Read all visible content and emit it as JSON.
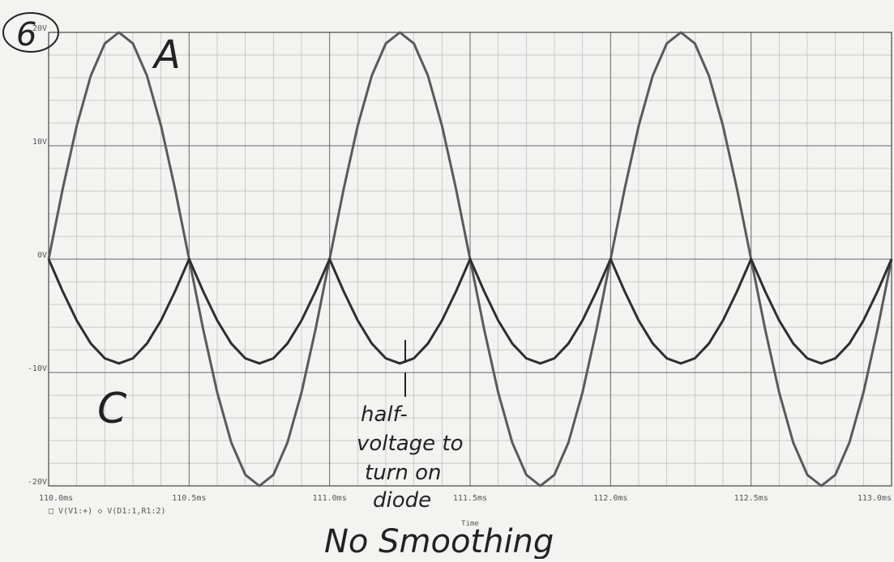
{
  "chart_data": {
    "type": "line",
    "x_label": "Time",
    "xlim": [
      110,
      113
    ],
    "ylim": [
      -20,
      20
    ],
    "xticks": [
      {
        "value": 110,
        "label": "110.0ms"
      },
      {
        "value": 110.5,
        "label": "110.5ms"
      },
      {
        "value": 111,
        "label": "111.0ms"
      },
      {
        "value": 111.5,
        "label": "111.5ms"
      },
      {
        "value": 112,
        "label": "112.0ms"
      },
      {
        "value": 112.5,
        "label": "112.5ms"
      },
      {
        "value": 113,
        "label": "113.0ms"
      }
    ],
    "yticks": [
      {
        "value": -20,
        "label": "-20V"
      },
      {
        "value": -10,
        "label": "-10V"
      },
      {
        "value": 0,
        "label": "0V"
      },
      {
        "value": 10,
        "label": "10V"
      },
      {
        "value": 20,
        "label": "20V"
      }
    ],
    "grid": true,
    "minor_grid": true,
    "x": [
      110,
      110.05,
      110.1,
      110.15,
      110.2,
      110.25,
      110.3,
      110.35,
      110.4,
      110.45,
      110.5,
      110.55,
      110.6,
      110.65,
      110.7,
      110.75,
      110.8,
      110.85,
      110.9,
      110.95,
      111,
      111.05,
      111.1,
      111.15,
      111.2,
      111.25,
      111.3,
      111.35,
      111.4,
      111.45,
      111.5,
      111.55,
      111.6,
      111.65,
      111.7,
      111.75,
      111.8,
      111.85,
      111.9,
      111.95,
      112,
      112.05,
      112.1,
      112.15,
      112.2,
      112.25,
      112.3,
      112.35,
      112.4,
      112.45,
      112.5,
      112.55,
      112.6,
      112.65,
      112.7,
      112.75,
      112.8,
      112.85,
      112.9,
      112.95,
      113
    ],
    "series": [
      {
        "name": "V(V1:+)",
        "color": "#5a5a5a",
        "values": [
          0,
          6.18,
          11.76,
          16.18,
          19.02,
          20,
          19.02,
          16.18,
          11.76,
          6.18,
          0,
          -6.18,
          -11.76,
          -16.18,
          -19.02,
          -20,
          -19.02,
          -16.18,
          -11.76,
          -6.18,
          0,
          6.18,
          11.76,
          16.18,
          19.02,
          20,
          19.02,
          16.18,
          11.76,
          6.18,
          0,
          -6.18,
          -11.76,
          -16.18,
          -19.02,
          -20,
          -19.02,
          -16.18,
          -11.76,
          -6.18,
          0,
          6.18,
          11.76,
          16.18,
          19.02,
          20,
          19.02,
          16.18,
          11.76,
          6.18,
          0,
          -6.18,
          -11.76,
          -16.18,
          -19.02,
          -20,
          -19.02,
          -16.18,
          -11.76,
          -6.18,
          0
        ]
      },
      {
        "name": "V(D1:1,R1:2)",
        "color": "#2e2e2e",
        "values": [
          0,
          -2.84,
          -5.41,
          -7.44,
          -8.75,
          -9.2,
          -8.75,
          -7.44,
          -5.41,
          -2.84,
          0,
          -2.84,
          -5.41,
          -7.44,
          -8.75,
          -9.2,
          -8.75,
          -7.44,
          -5.41,
          -2.84,
          0,
          -2.84,
          -5.41,
          -7.44,
          -8.75,
          -9.2,
          -8.75,
          -7.44,
          -5.41,
          -2.84,
          0,
          -2.84,
          -5.41,
          -7.44,
          -8.75,
          -9.2,
          -8.75,
          -7.44,
          -5.41,
          -2.84,
          0,
          -2.84,
          -5.41,
          -7.44,
          -8.75,
          -9.2,
          -8.75,
          -7.44,
          -5.41,
          -2.84,
          0,
          -2.84,
          -5.41,
          -7.44,
          -8.75,
          -9.2,
          -8.75,
          -7.44,
          -5.41,
          -2.84,
          0
        ]
      }
    ],
    "annotations": [
      "6",
      "A",
      "C",
      "half-",
      "voltage to",
      "turn on",
      "diode",
      "No Smoothing"
    ]
  }
}
